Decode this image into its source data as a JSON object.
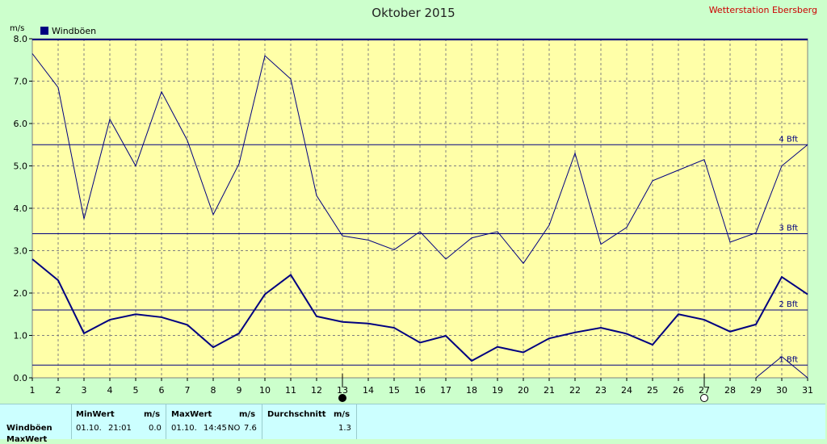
{
  "header": {
    "title": "Oktober 2015",
    "station": "Wetterstation Ebersberg"
  },
  "chart_data": {
    "type": "line",
    "title": "Oktober 2015",
    "ylabel": "m/s",
    "ylim": [
      0,
      8
    ],
    "yticks": [
      "0.0",
      "1.0",
      "2.0",
      "3.0",
      "4.0",
      "5.0",
      "6.0",
      "7.0",
      "8.0"
    ],
    "x": [
      1,
      2,
      3,
      4,
      5,
      6,
      7,
      8,
      9,
      10,
      11,
      12,
      13,
      14,
      15,
      16,
      17,
      18,
      19,
      20,
      21,
      22,
      23,
      24,
      25,
      26,
      27,
      28,
      29,
      30,
      31
    ],
    "legend": [
      "Windböen"
    ],
    "grid": true,
    "series": [
      {
        "role": "max",
        "color": "#000080",
        "values": [
          7.65,
          6.85,
          3.75,
          6.1,
          5.0,
          6.75,
          5.6,
          3.85,
          5.05,
          7.6,
          7.05,
          4.3,
          3.35,
          3.25,
          3.02,
          3.45,
          2.8,
          3.3,
          3.45,
          2.7,
          3.6,
          5.3,
          3.15,
          3.55,
          4.65,
          4.9,
          5.15,
          3.2,
          3.42,
          5.0,
          5.5
        ]
      },
      {
        "role": "avg",
        "color": "#000080",
        "values": [
          2.8,
          2.3,
          1.05,
          1.37,
          1.5,
          1.43,
          1.25,
          0.72,
          1.05,
          1.97,
          2.43,
          1.45,
          1.32,
          1.28,
          1.18,
          0.83,
          0.99,
          0.4,
          0.73,
          0.6,
          0.93,
          1.07,
          1.18,
          1.04,
          0.78,
          1.5,
          1.37,
          1.09,
          1.26,
          2.38,
          1.97
        ]
      }
    ],
    "bft_lines": [
      {
        "label": "1 Bft",
        "value": 0.3
      },
      {
        "label": "2 Bft",
        "value": 1.6
      },
      {
        "label": "3 Bft",
        "value": 3.4
      },
      {
        "label": "4 Bft",
        "value": 5.5
      }
    ],
    "min_segment": {
      "x_start": 29,
      "values": [
        0.0,
        0.5,
        0.0
      ]
    },
    "moon_markers": [
      {
        "day": 13,
        "phase": "new-moon"
      },
      {
        "day": 27,
        "phase": "full-moon"
      }
    ]
  },
  "stats": {
    "row_label": "Windböen",
    "row_label_2": "MaxWert",
    "min": {
      "header": "MinWert",
      "unit": "m/s",
      "date": "01.10.",
      "time": "21:01",
      "value": "0.0"
    },
    "max": {
      "header": "MaxWert",
      "unit": "m/s",
      "date": "01.10.",
      "time": "14:45",
      "dir": "NO",
      "value": "7.6"
    },
    "avg": {
      "header": "Durchschnitt",
      "unit": "m/s",
      "value": "1.3"
    }
  }
}
